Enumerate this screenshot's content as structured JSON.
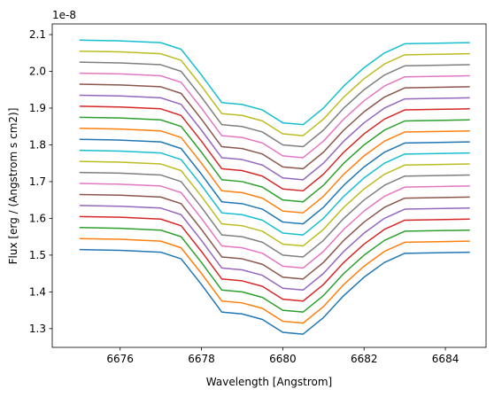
{
  "chart_data": {
    "type": "line",
    "x_label": "Wavelength [Angstrom]",
    "y_label": "Flux [erg / (Angstrom s cm2)]",
    "y_offset_label": "1e-8",
    "xlim": [
      6674.33,
      6685.0
    ],
    "ylim": [
      1.249,
      2.129
    ],
    "xticks": [
      6676,
      6678,
      6680,
      6682,
      6684
    ],
    "yticks": [
      1.3,
      1.4,
      1.5,
      1.6,
      1.7,
      1.8,
      1.9,
      {
        "value": 2,
        "label": "2.0"
      },
      2.1
    ],
    "grid": false,
    "x": [
      6675,
      6676,
      6677,
      6677.5,
      6678,
      6678.5,
      6679,
      6679.5,
      6680,
      6680.5,
      6681,
      6681.5,
      6682,
      6682.5,
      6683,
      6684.6
    ],
    "series": [
      {
        "color": "#1f77b4",
        "values": [
          1.515,
          1.513,
          1.508,
          1.49,
          1.42,
          1.345,
          1.34,
          1.325,
          1.29,
          1.285,
          1.33,
          1.39,
          1.44,
          1.48,
          1.505,
          1.508
        ]
      },
      {
        "color": "#ff7f0e",
        "values": [
          1.545,
          1.543,
          1.538,
          1.52,
          1.45,
          1.375,
          1.37,
          1.355,
          1.32,
          1.315,
          1.36,
          1.42,
          1.47,
          1.51,
          1.535,
          1.538
        ]
      },
      {
        "color": "#2ca02c",
        "values": [
          1.575,
          1.573,
          1.568,
          1.55,
          1.48,
          1.405,
          1.4,
          1.385,
          1.35,
          1.345,
          1.39,
          1.45,
          1.5,
          1.54,
          1.565,
          1.568
        ]
      },
      {
        "color": "#d62728",
        "values": [
          1.605,
          1.603,
          1.598,
          1.58,
          1.51,
          1.435,
          1.43,
          1.415,
          1.38,
          1.375,
          1.42,
          1.48,
          1.53,
          1.57,
          1.595,
          1.598
        ]
      },
      {
        "color": "#9467bd",
        "values": [
          1.635,
          1.633,
          1.628,
          1.61,
          1.54,
          1.465,
          1.46,
          1.445,
          1.41,
          1.405,
          1.45,
          1.51,
          1.56,
          1.6,
          1.625,
          1.628
        ]
      },
      {
        "color": "#8c564b",
        "values": [
          1.665,
          1.663,
          1.658,
          1.64,
          1.57,
          1.495,
          1.49,
          1.475,
          1.44,
          1.435,
          1.48,
          1.54,
          1.59,
          1.63,
          1.655,
          1.658
        ]
      },
      {
        "color": "#e377c2",
        "values": [
          1.695,
          1.693,
          1.688,
          1.67,
          1.6,
          1.525,
          1.52,
          1.505,
          1.47,
          1.465,
          1.51,
          1.57,
          1.62,
          1.66,
          1.685,
          1.688
        ]
      },
      {
        "color": "#7f7f7f",
        "values": [
          1.725,
          1.723,
          1.718,
          1.7,
          1.63,
          1.555,
          1.55,
          1.535,
          1.5,
          1.495,
          1.54,
          1.6,
          1.65,
          1.69,
          1.715,
          1.718
        ]
      },
      {
        "color": "#bcbd22",
        "values": [
          1.755,
          1.753,
          1.748,
          1.73,
          1.66,
          1.585,
          1.58,
          1.565,
          1.53,
          1.525,
          1.57,
          1.63,
          1.68,
          1.72,
          1.745,
          1.748
        ]
      },
      {
        "color": "#17becf",
        "values": [
          1.785,
          1.783,
          1.778,
          1.76,
          1.69,
          1.615,
          1.61,
          1.595,
          1.56,
          1.555,
          1.6,
          1.66,
          1.71,
          1.75,
          1.775,
          1.778
        ]
      },
      {
        "color": "#1f77b4",
        "values": [
          1.815,
          1.813,
          1.808,
          1.79,
          1.72,
          1.645,
          1.64,
          1.625,
          1.59,
          1.585,
          1.63,
          1.69,
          1.74,
          1.78,
          1.805,
          1.808
        ]
      },
      {
        "color": "#ff7f0e",
        "values": [
          1.845,
          1.843,
          1.838,
          1.82,
          1.75,
          1.675,
          1.67,
          1.655,
          1.62,
          1.615,
          1.66,
          1.72,
          1.77,
          1.81,
          1.835,
          1.838
        ]
      },
      {
        "color": "#2ca02c",
        "values": [
          1.875,
          1.873,
          1.868,
          1.85,
          1.78,
          1.705,
          1.7,
          1.685,
          1.65,
          1.645,
          1.69,
          1.75,
          1.8,
          1.84,
          1.865,
          1.868
        ]
      },
      {
        "color": "#d62728",
        "values": [
          1.905,
          1.903,
          1.898,
          1.88,
          1.81,
          1.735,
          1.73,
          1.715,
          1.68,
          1.675,
          1.72,
          1.78,
          1.83,
          1.87,
          1.895,
          1.898
        ]
      },
      {
        "color": "#9467bd",
        "values": [
          1.935,
          1.933,
          1.928,
          1.91,
          1.84,
          1.765,
          1.76,
          1.745,
          1.71,
          1.705,
          1.75,
          1.81,
          1.86,
          1.9,
          1.925,
          1.928
        ]
      },
      {
        "color": "#8c564b",
        "values": [
          1.965,
          1.963,
          1.958,
          1.94,
          1.87,
          1.795,
          1.79,
          1.775,
          1.74,
          1.735,
          1.78,
          1.84,
          1.89,
          1.93,
          1.955,
          1.958
        ]
      },
      {
        "color": "#e377c2",
        "values": [
          1.995,
          1.993,
          1.988,
          1.97,
          1.9,
          1.825,
          1.82,
          1.805,
          1.77,
          1.765,
          1.81,
          1.87,
          1.92,
          1.96,
          1.985,
          1.988
        ]
      },
      {
        "color": "#7f7f7f",
        "values": [
          2.025,
          2.023,
          2.018,
          2.0,
          1.93,
          1.855,
          1.85,
          1.835,
          1.8,
          1.795,
          1.84,
          1.9,
          1.95,
          1.99,
          2.015,
          2.018
        ]
      },
      {
        "color": "#bcbd22",
        "values": [
          2.055,
          2.053,
          2.048,
          2.03,
          1.96,
          1.885,
          1.88,
          1.865,
          1.83,
          1.825,
          1.87,
          1.93,
          1.98,
          2.02,
          2.045,
          2.048
        ]
      },
      {
        "color": "#17becf",
        "values": [
          2.085,
          2.083,
          2.078,
          2.06,
          1.99,
          1.915,
          1.91,
          1.895,
          1.86,
          1.855,
          1.9,
          1.96,
          2.01,
          2.05,
          2.075,
          2.078
        ]
      }
    ]
  }
}
